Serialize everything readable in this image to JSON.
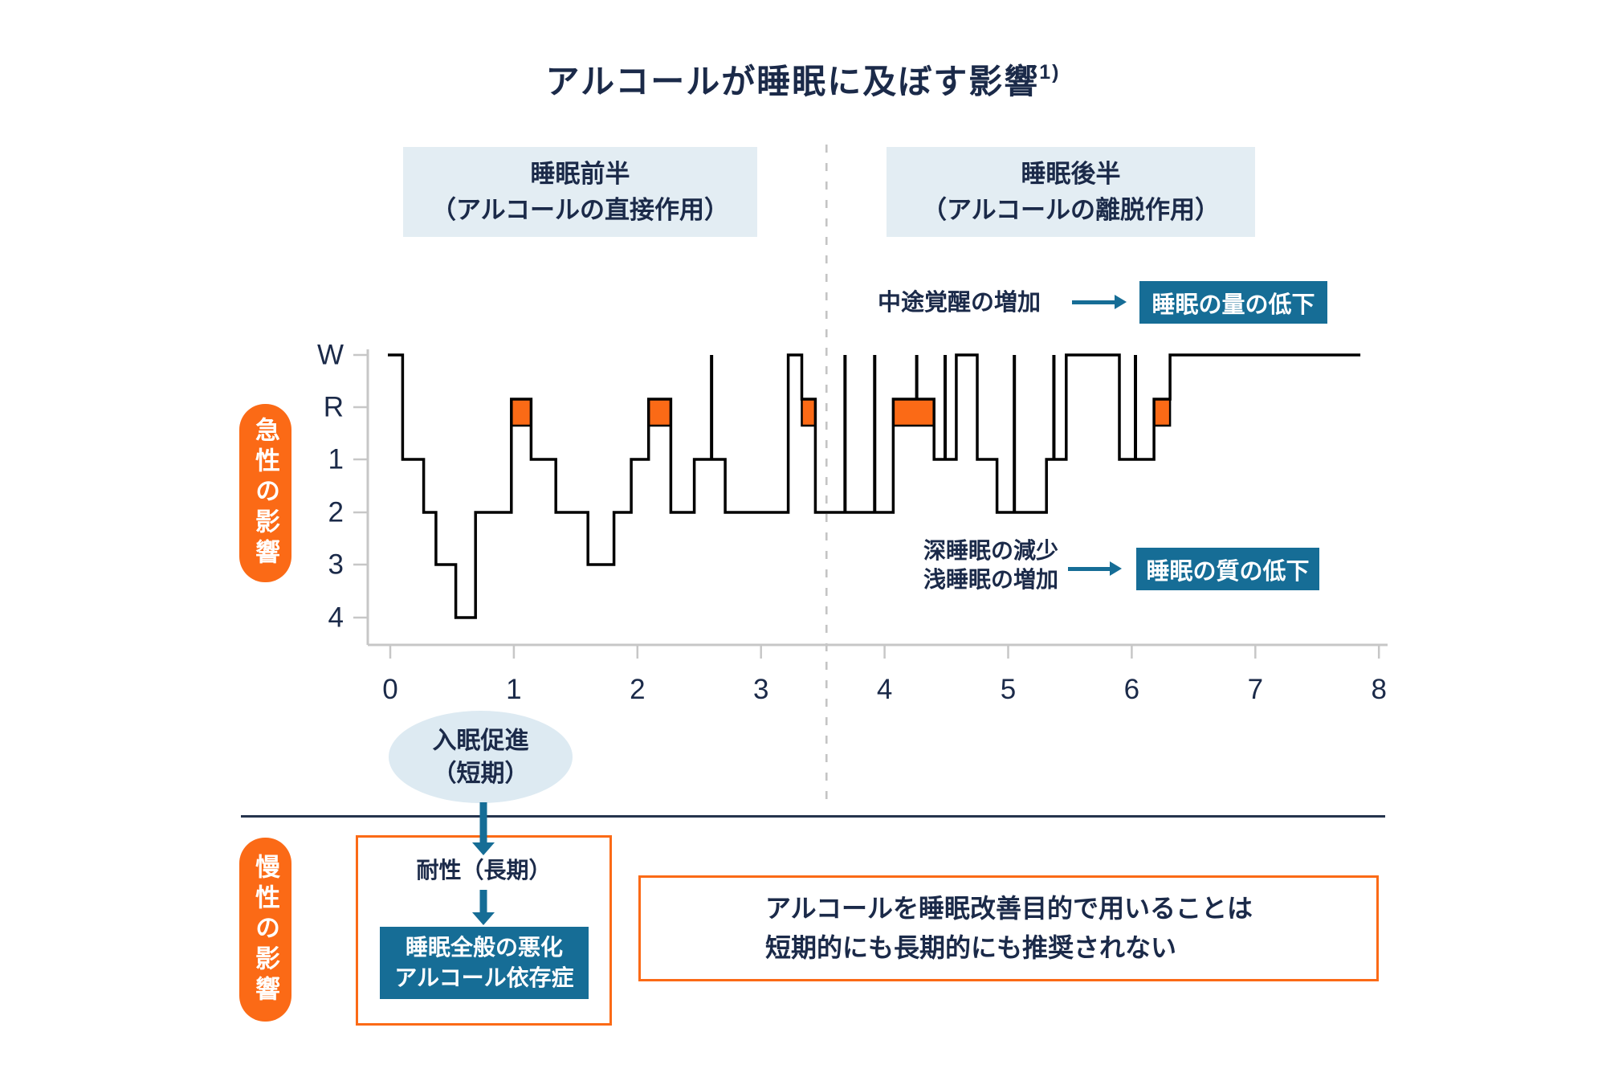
{
  "title": {
    "text": "アルコールが睡眠に及ぼす影響",
    "superscript": "1)"
  },
  "headers": {
    "first_half": {
      "line1": "睡眠前半",
      "line2": "（アルコールの直接作用）"
    },
    "second_half": {
      "line1": "睡眠後半",
      "line2": "（アルコールの離脱作用）"
    }
  },
  "side_labels": {
    "acute": "急性の影響",
    "chronic": "慢性の影響"
  },
  "annotations": {
    "quantity": {
      "label": "中途覚醒の増加",
      "box": "睡眠の量の低下"
    },
    "quality": {
      "label_line1": "深睡眠の減少",
      "label_line2": "浅睡眠の増加",
      "box": "睡眠の質の低下"
    }
  },
  "bottom": {
    "ellipse": {
      "line1": "入眠促進",
      "line2": "（短期）"
    },
    "tolerance": "耐性（長期）",
    "worsening": {
      "line1": "睡眠全般の悪化",
      "line2": "アルコール依存症"
    },
    "recommendation": {
      "line1": "アルコールを睡眠改善目的で用いることは",
      "line2": "短期的にも長期的にも推奨されない"
    }
  },
  "colors": {
    "navy": "#1b2a49",
    "orange": "#fb6a16",
    "teal": "#166d96",
    "header_bg": "#e3edf3",
    "ellipse_bg": "#ddeaf2",
    "axis_gray": "#c7c7c7",
    "dash_gray": "#c4c4c4",
    "line_black": "#000000"
  },
  "chart_data": {
    "type": "line",
    "subtype": "hypnogram-step",
    "xlabel": "",
    "ylabel": "",
    "x_range": [
      0,
      8
    ],
    "xlabel_ticks": [
      "0",
      "1",
      "2",
      "3",
      "4",
      "5",
      "6",
      "7",
      "8"
    ],
    "stage_labels": [
      "W",
      "R",
      "1",
      "2",
      "3",
      "4"
    ],
    "grid": false,
    "separator_hour": 3.53,
    "segments": [
      {
        "stage": "W",
        "start": 0,
        "end": 0.1
      },
      {
        "stage": "1",
        "start": 0.1,
        "end": 0.27
      },
      {
        "stage": "2",
        "start": 0.27,
        "end": 0.37
      },
      {
        "stage": "3",
        "start": 0.37,
        "end": 0.53
      },
      {
        "stage": "4",
        "start": 0.53,
        "end": 0.69
      },
      {
        "stage": "2",
        "start": 0.69,
        "end": 0.98
      },
      {
        "stage": "R",
        "start": 0.98,
        "end": 1.14
      },
      {
        "stage": "1",
        "start": 1.14,
        "end": 1.34
      },
      {
        "stage": "2",
        "start": 1.34,
        "end": 1.6
      },
      {
        "stage": "3",
        "start": 1.6,
        "end": 1.81
      },
      {
        "stage": "2",
        "start": 1.81,
        "end": 1.95
      },
      {
        "stage": "1",
        "start": 1.95,
        "end": 2.09
      },
      {
        "stage": "R",
        "start": 2.09,
        "end": 2.27
      },
      {
        "stage": "2",
        "start": 2.27,
        "end": 2.46
      },
      {
        "stage": "1",
        "start": 2.46,
        "end": 2.71
      },
      {
        "stage": "2",
        "start": 2.71,
        "end": 3.22
      },
      {
        "stage": "W",
        "start": 3.22,
        "end": 3.33
      },
      {
        "stage": "R",
        "start": 3.33,
        "end": 3.44
      },
      {
        "stage": "2",
        "start": 3.44,
        "end": 4.07
      },
      {
        "stage": "R",
        "start": 4.07,
        "end": 4.4
      },
      {
        "stage": "1",
        "start": 4.4,
        "end": 4.58
      },
      {
        "stage": "W",
        "start": 4.58,
        "end": 4.75
      },
      {
        "stage": "1",
        "start": 4.75,
        "end": 4.91
      },
      {
        "stage": "2",
        "start": 4.91,
        "end": 5.31
      },
      {
        "stage": "1",
        "start": 5.31,
        "end": 5.47
      },
      {
        "stage": "W",
        "start": 5.47,
        "end": 5.9
      },
      {
        "stage": "1",
        "start": 5.9,
        "end": 6.18
      },
      {
        "stage": "R",
        "start": 6.18,
        "end": 6.31
      },
      {
        "stage": "W",
        "start": 6.31,
        "end": 7.85
      }
    ],
    "rem_highlight_periods": [
      [
        0.98,
        1.14
      ],
      [
        2.09,
        2.27
      ],
      [
        3.33,
        3.44
      ],
      [
        4.07,
        4.4
      ],
      [
        6.18,
        6.31
      ]
    ],
    "brief_wake_spikes": [
      {
        "hour": 2.6,
        "from_stage": "1"
      },
      {
        "hour": 3.68,
        "from_stage": "2"
      },
      {
        "hour": 3.92,
        "from_stage": "2"
      },
      {
        "hour": 4.26,
        "from_stage": "R"
      },
      {
        "hour": 4.49,
        "from_stage": "1"
      },
      {
        "hour": 5.05,
        "from_stage": "2"
      },
      {
        "hour": 5.37,
        "from_stage": "1"
      },
      {
        "hour": 6.03,
        "from_stage": "1"
      }
    ]
  }
}
